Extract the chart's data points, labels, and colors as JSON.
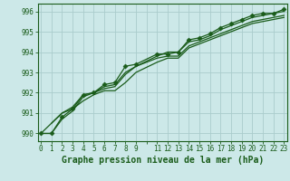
{
  "title": "Graphe pression niveau de la mer (hPa)",
  "bg_color": "#cce8e8",
  "grid_color": "#aacccc",
  "line_color": "#1a5c1a",
  "ylim": [
    989.62,
    996.38
  ],
  "xlim": [
    -0.3,
    23.3
  ],
  "yticks": [
    990,
    991,
    992,
    993,
    994,
    995,
    996
  ],
  "line1_x": [
    0,
    1,
    2,
    3,
    4,
    5,
    6,
    7,
    8,
    9,
    11,
    12,
    13,
    14,
    15,
    16,
    17,
    18,
    19,
    20,
    21,
    22,
    23
  ],
  "line1_y": [
    990.0,
    990.0,
    990.8,
    991.2,
    991.9,
    992.0,
    992.4,
    992.5,
    993.3,
    993.4,
    993.9,
    993.9,
    994.0,
    994.6,
    994.7,
    994.9,
    995.2,
    995.4,
    995.6,
    995.8,
    995.9,
    995.9,
    996.1
  ],
  "line2_x": [
    0,
    1,
    2,
    3,
    4,
    5,
    6,
    7,
    8,
    9,
    11,
    12,
    13,
    14,
    15,
    16,
    17,
    18,
    19,
    20,
    21,
    22,
    23
  ],
  "line2_y": [
    990.0,
    990.0,
    990.7,
    991.1,
    991.8,
    992.0,
    992.2,
    992.3,
    992.9,
    993.3,
    993.7,
    993.8,
    993.8,
    994.3,
    994.5,
    994.7,
    994.9,
    995.1,
    995.3,
    995.5,
    995.6,
    995.7,
    995.8
  ],
  "line3_x": [
    0,
    1,
    2,
    3,
    4,
    5,
    6,
    7,
    8,
    9,
    11,
    12,
    13,
    14,
    15,
    16,
    17,
    18,
    19,
    20,
    21,
    22,
    23
  ],
  "line3_y": [
    990.0,
    990.5,
    991.0,
    991.2,
    991.6,
    991.9,
    992.1,
    992.1,
    992.5,
    993.0,
    993.5,
    993.7,
    993.7,
    994.2,
    994.4,
    994.6,
    994.8,
    995.0,
    995.2,
    995.4,
    995.5,
    995.6,
    995.7
  ],
  "line4_x": [
    1,
    2,
    3,
    4,
    5,
    6,
    7,
    8,
    9,
    11,
    12,
    13,
    14,
    15,
    16,
    17,
    18,
    19,
    20,
    21,
    22,
    23
  ],
  "line4_y": [
    990.5,
    991.0,
    991.3,
    991.9,
    992.0,
    992.3,
    992.4,
    993.0,
    993.3,
    993.8,
    994.0,
    994.0,
    994.5,
    994.6,
    994.8,
    995.1,
    995.3,
    995.5,
    995.7,
    995.8,
    995.9,
    996.0
  ],
  "marker": "D",
  "marker_size": 2.5,
  "linewidth": 0.9,
  "title_fontsize": 7,
  "tick_fontsize": 5.5
}
